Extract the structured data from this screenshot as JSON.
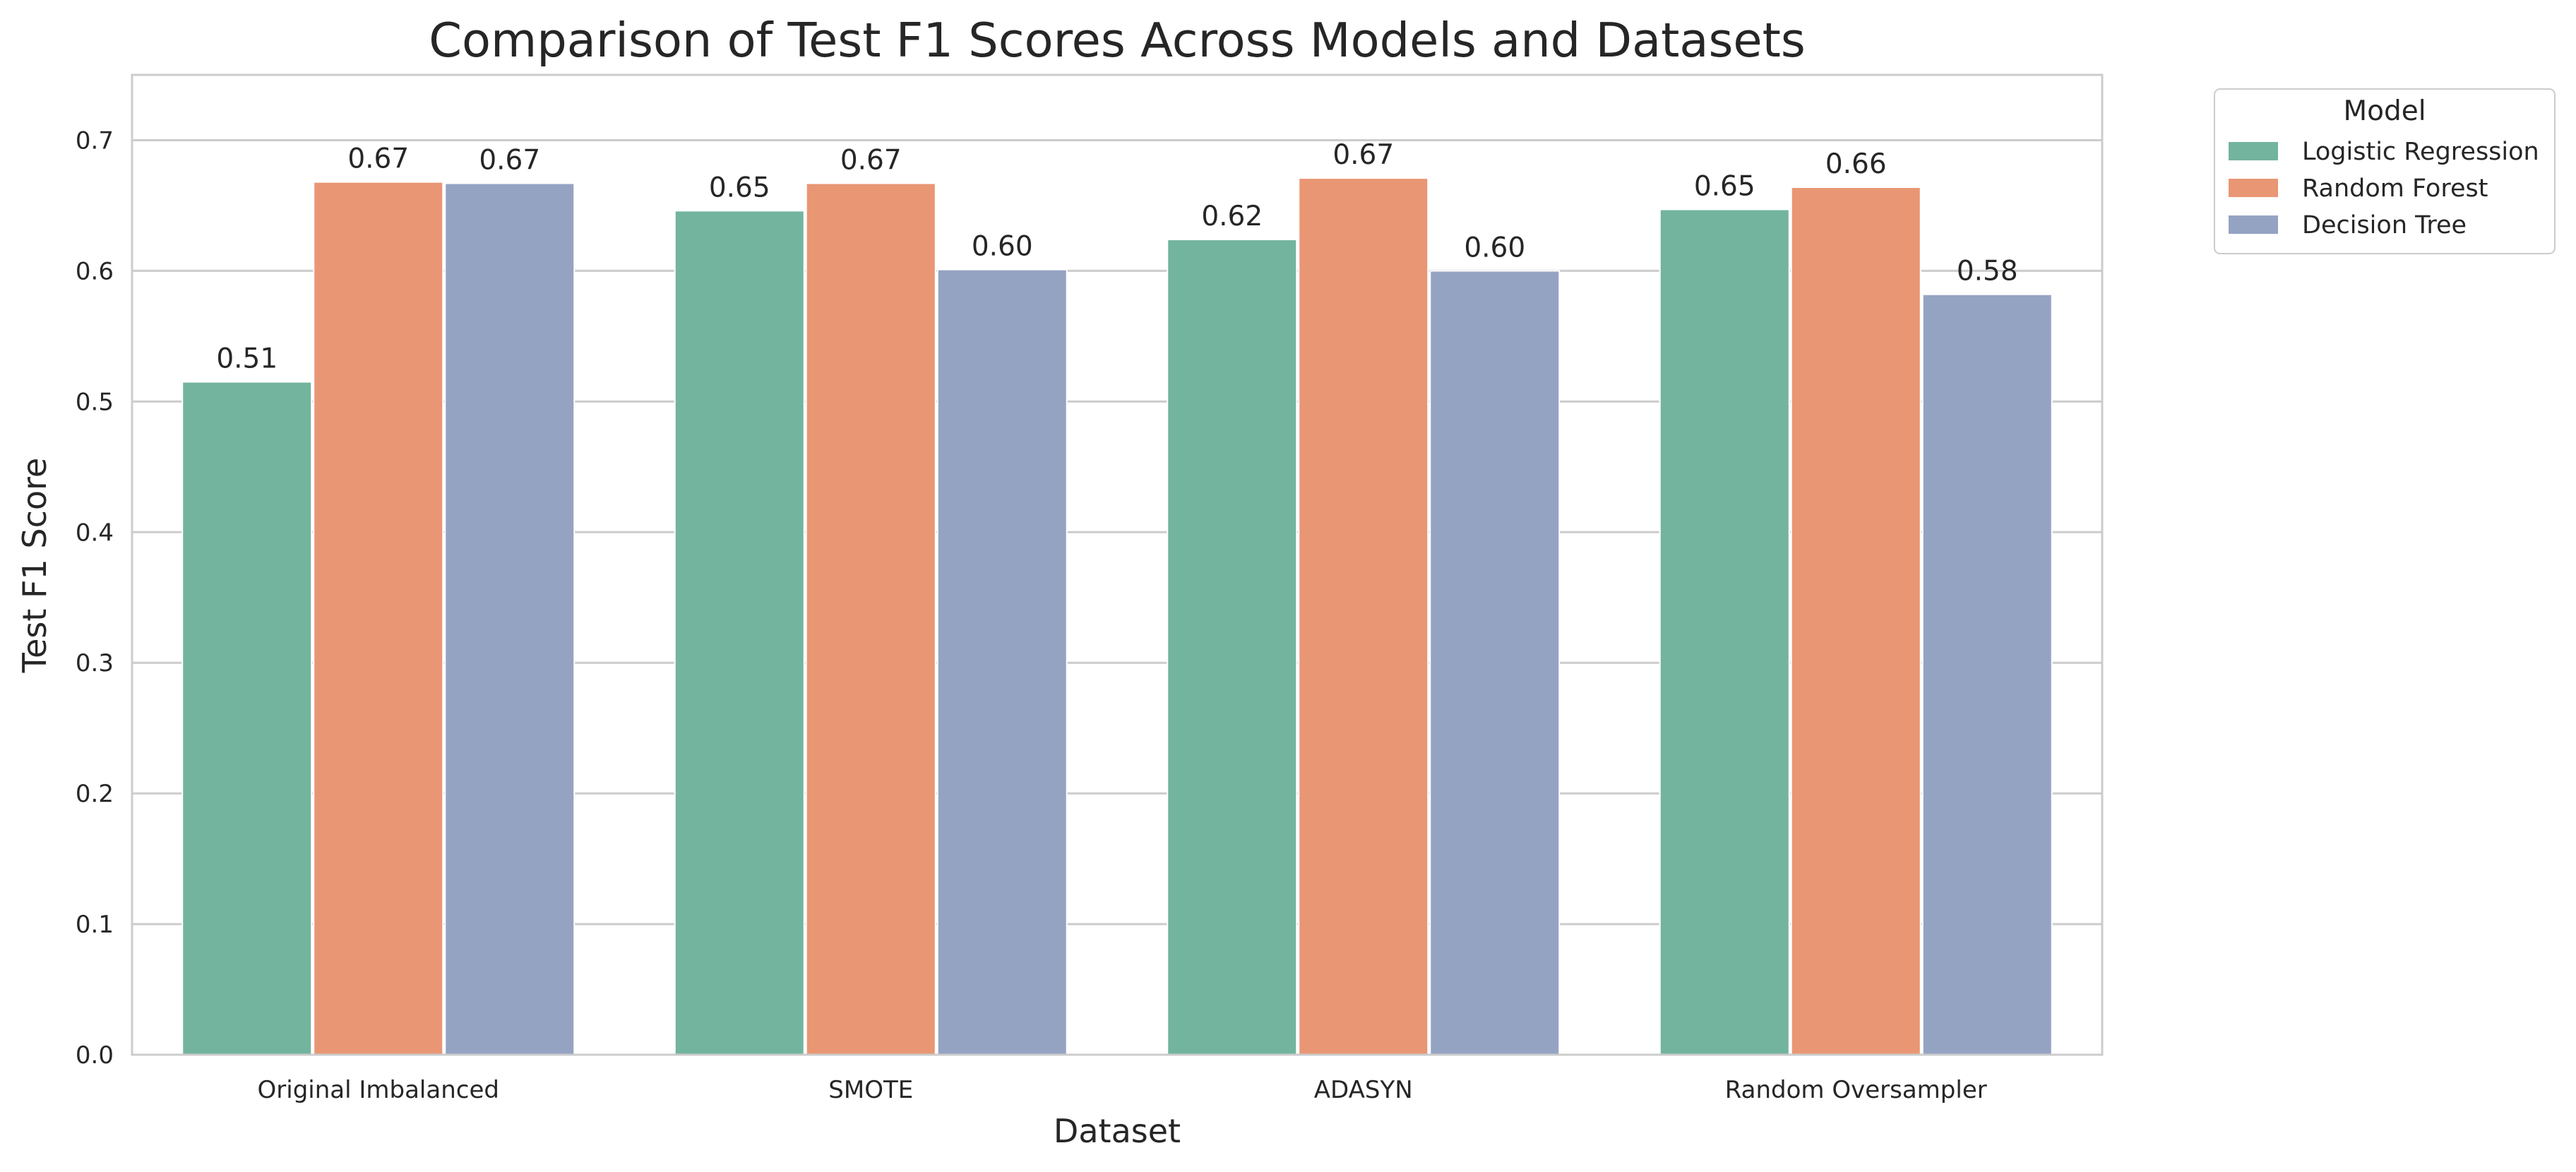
{
  "chart_data": {
    "type": "bar",
    "title": "Comparison of Test F1 Scores Across Models and Datasets",
    "xlabel": "Dataset",
    "ylabel": "Test F1 Score",
    "categories": [
      "Original Imbalanced",
      "SMOTE",
      "ADASYN",
      "Random Oversampler"
    ],
    "series": [
      {
        "name": "Logistic Regression",
        "values": [
          0.515,
          0.646,
          0.624,
          0.647
        ],
        "labels": [
          "0.51",
          "0.65",
          "0.62",
          "0.65"
        ],
        "color": "#73b49f"
      },
      {
        "name": "Random Forest",
        "values": [
          0.668,
          0.667,
          0.671,
          0.664
        ],
        "labels": [
          "0.67",
          "0.67",
          "0.67",
          "0.66"
        ],
        "color": "#e99674"
      },
      {
        "name": "Decision Tree",
        "values": [
          0.667,
          0.601,
          0.6,
          0.582
        ],
        "labels": [
          "0.67",
          "0.60",
          "0.60",
          "0.58"
        ],
        "color": "#95a3c3"
      }
    ],
    "ylim": [
      0,
      0.75
    ],
    "yticks": [
      "0.0",
      "0.1",
      "0.2",
      "0.3",
      "0.4",
      "0.5",
      "0.6",
      "0.7"
    ],
    "grid": true,
    "legend": {
      "title": "Model",
      "placement": "outside-upper-right"
    }
  }
}
